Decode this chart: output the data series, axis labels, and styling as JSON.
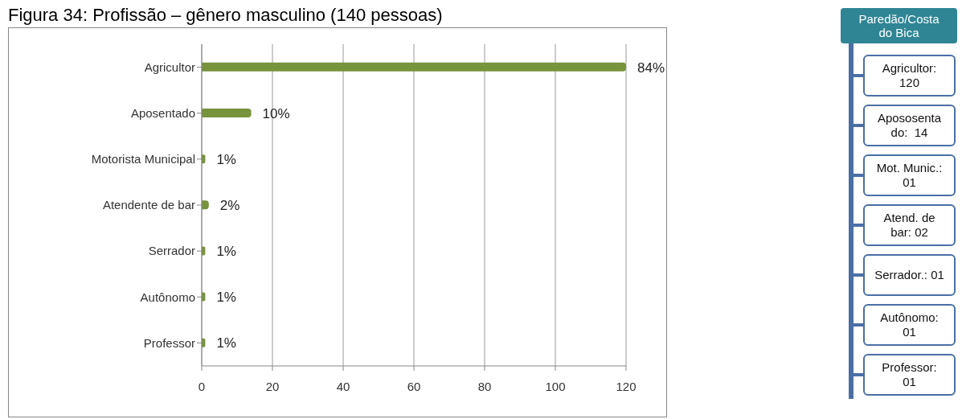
{
  "chart_data": [
    {
      "type": "bar",
      "title": "Figura 34: Profissão – gênero masculino (140 pessoas)",
      "orientation": "horizontal",
      "categories": [
        "Agricultor",
        "Aposentado",
        "Motorista Municipal",
        "Atendente de bar",
        "Serrador",
        "Autônomo",
        "Professor"
      ],
      "values": [
        120,
        14,
        1,
        2,
        1,
        1,
        1
      ],
      "annotations": [
        {
          "text": "84%",
          "x": 120,
          "y": "Agricultor"
        },
        {
          "text": "10%",
          "x": 14,
          "y": "Aposentado"
        },
        {
          "text": "1%",
          "x": 1,
          "y": "Motorista Municipal"
        },
        {
          "text": "2%",
          "x": 2,
          "y": "Atendente de bar"
        },
        {
          "text": "1%",
          "x": 1,
          "y": "Serrador"
        },
        {
          "text": "1%",
          "x": 1,
          "y": "Autônomo"
        },
        {
          "text": "1%",
          "x": 1,
          "y": "Professor"
        }
      ],
      "color": "#77933c",
      "xlim": [
        0,
        120
      ],
      "xticks": [
        0,
        20,
        40,
        60,
        80,
        100,
        120
      ],
      "grid": "x"
    },
    {
      "type": "other",
      "annotations": [
        "Paredão/Costa\ndo Bica",
        "Agricultor:\n120",
        "Apososenta\ndo:  14",
        "Mot. Munic.:\n01",
        "Atend. de\nbar: 02",
        "Serrador.: 01",
        "Autônomo:\n01",
        "Professor:\n01"
      ]
    }
  ]
}
